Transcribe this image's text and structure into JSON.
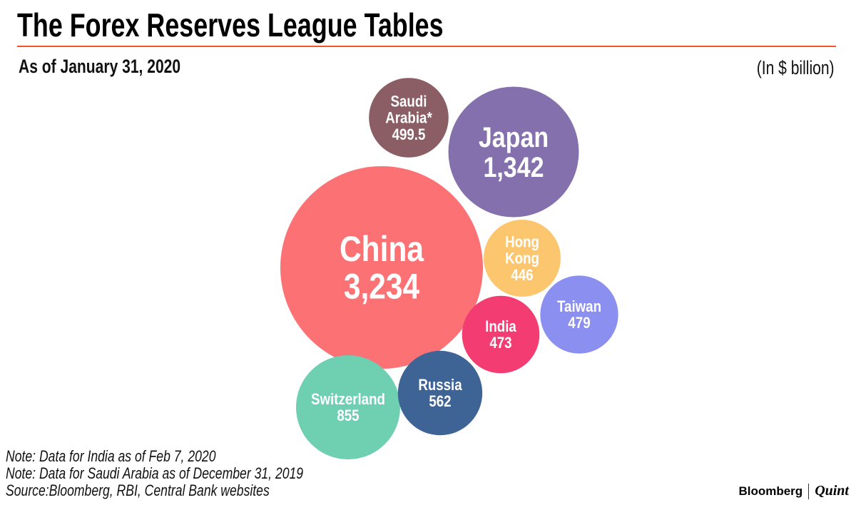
{
  "header": {
    "title": "The Forex Reserves League Tables",
    "subtitle": "As of January 31, 2020",
    "unit": "(In $ billion)"
  },
  "chart_data": {
    "type": "bubble",
    "title": "The Forex Reserves League Tables",
    "unit": "$ billion",
    "series": [
      {
        "name": "China",
        "label": "China",
        "value": 3234,
        "display": "3,234",
        "color": "#fc7173"
      },
      {
        "name": "Japan",
        "label": "Japan",
        "value": 1342,
        "display": "1,342",
        "color": "#8470ad"
      },
      {
        "name": "Switzerland",
        "label": "Switzerland",
        "value": 855,
        "display": "855",
        "color": "#6ecfb1"
      },
      {
        "name": "Russia",
        "label": "Russia",
        "value": 562,
        "display": "562",
        "color": "#3e6496"
      },
      {
        "name": "Saudi Arabia",
        "label": "Saudi|Arabia*",
        "value": 499.5,
        "display": "499.5",
        "color": "#8b5e66"
      },
      {
        "name": "Taiwan",
        "label": "Taiwan",
        "value": 479,
        "display": "479",
        "color": "#8a8ff0"
      },
      {
        "name": "India",
        "label": "India",
        "value": 473,
        "display": "473",
        "color": "#f23c72"
      },
      {
        "name": "Hong Kong",
        "label": "Hong|Kong",
        "value": 446,
        "display": "446",
        "color": "#fcc66f"
      }
    ]
  },
  "footer": {
    "notes": [
      "Note: Data for India as of Feb 7, 2020",
      "Note: Data for Saudi Arabia as of December 31, 2019",
      "Source:Bloomberg, RBI, Central Bank websites"
    ],
    "brand_left": "Bloomberg",
    "brand_right": "Quint"
  }
}
